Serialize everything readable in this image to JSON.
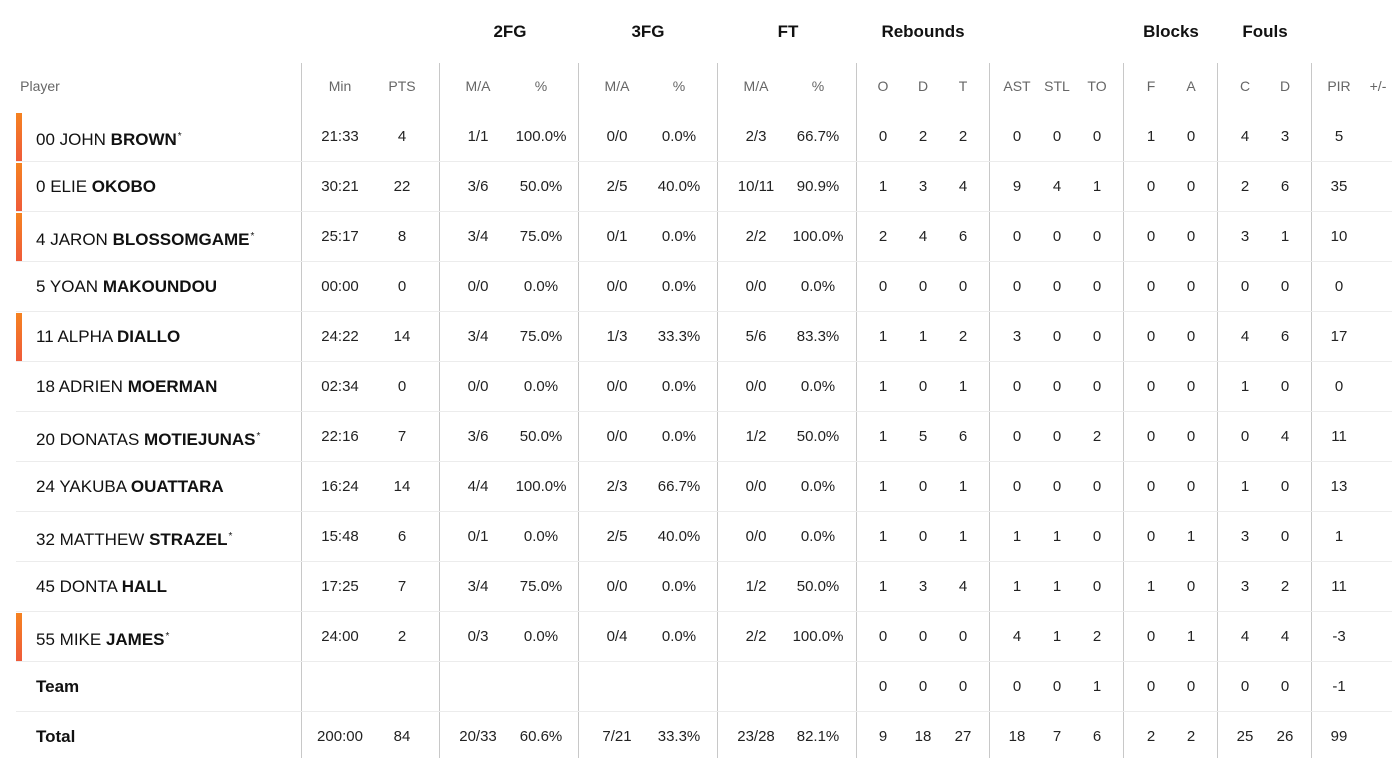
{
  "groups": {
    "fg2": "2FG",
    "fg3": "3FG",
    "ft": "FT",
    "rebounds": "Rebounds",
    "blocks": "Blocks",
    "fouls": "Fouls"
  },
  "columns": {
    "player": "Player",
    "min": "Min",
    "pts": "PTS",
    "fg2_ma": "M/A",
    "fg2_pct": "%",
    "fg3_ma": "M/A",
    "fg3_pct": "%",
    "ft_ma": "M/A",
    "ft_pct": "%",
    "reb_o": "O",
    "reb_d": "D",
    "reb_t": "T",
    "ast": "AST",
    "stl": "STL",
    "to": "TO",
    "blk_f": "F",
    "blk_a": "A",
    "foul_c": "C",
    "foul_d": "D",
    "pir": "PIR",
    "pm": "+/-"
  },
  "accent_color": "#f26f2c",
  "players": [
    {
      "number": "00",
      "first": "JOHN",
      "last": "BROWN",
      "starter": true,
      "on_court": true,
      "min": "21:33",
      "pts": "4",
      "fg2_ma": "1/1",
      "fg2_pct": "100.0%",
      "fg3_ma": "0/0",
      "fg3_pct": "0.0%",
      "ft_ma": "2/3",
      "ft_pct": "66.7%",
      "reb_o": "0",
      "reb_d": "2",
      "reb_t": "2",
      "ast": "0",
      "stl": "0",
      "to": "0",
      "blk_f": "1",
      "blk_a": "0",
      "foul_c": "4",
      "foul_d": "3",
      "pir": "5"
    },
    {
      "number": "0",
      "first": "ELIE",
      "last": "OKOBO",
      "starter": false,
      "on_court": true,
      "min": "30:21",
      "pts": "22",
      "fg2_ma": "3/6",
      "fg2_pct": "50.0%",
      "fg3_ma": "2/5",
      "fg3_pct": "40.0%",
      "ft_ma": "10/11",
      "ft_pct": "90.9%",
      "reb_o": "1",
      "reb_d": "3",
      "reb_t": "4",
      "ast": "9",
      "stl": "4",
      "to": "1",
      "blk_f": "0",
      "blk_a": "0",
      "foul_c": "2",
      "foul_d": "6",
      "pir": "35"
    },
    {
      "number": "4",
      "first": "JARON",
      "last": "BLOSSOMGAME",
      "starter": true,
      "on_court": true,
      "min": "25:17",
      "pts": "8",
      "fg2_ma": "3/4",
      "fg2_pct": "75.0%",
      "fg3_ma": "0/1",
      "fg3_pct": "0.0%",
      "ft_ma": "2/2",
      "ft_pct": "100.0%",
      "reb_o": "2",
      "reb_d": "4",
      "reb_t": "6",
      "ast": "0",
      "stl": "0",
      "to": "0",
      "blk_f": "0",
      "blk_a": "0",
      "foul_c": "3",
      "foul_d": "1",
      "pir": "10"
    },
    {
      "number": "5",
      "first": "YOAN",
      "last": "MAKOUNDOU",
      "starter": false,
      "on_court": false,
      "min": "00:00",
      "pts": "0",
      "fg2_ma": "0/0",
      "fg2_pct": "0.0%",
      "fg3_ma": "0/0",
      "fg3_pct": "0.0%",
      "ft_ma": "0/0",
      "ft_pct": "0.0%",
      "reb_o": "0",
      "reb_d": "0",
      "reb_t": "0",
      "ast": "0",
      "stl": "0",
      "to": "0",
      "blk_f": "0",
      "blk_a": "0",
      "foul_c": "0",
      "foul_d": "0",
      "pir": "0"
    },
    {
      "number": "11",
      "first": "ALPHA",
      "last": "DIALLO",
      "starter": false,
      "on_court": true,
      "min": "24:22",
      "pts": "14",
      "fg2_ma": "3/4",
      "fg2_pct": "75.0%",
      "fg3_ma": "1/3",
      "fg3_pct": "33.3%",
      "ft_ma": "5/6",
      "ft_pct": "83.3%",
      "reb_o": "1",
      "reb_d": "1",
      "reb_t": "2",
      "ast": "3",
      "stl": "0",
      "to": "0",
      "blk_f": "0",
      "blk_a": "0",
      "foul_c": "4",
      "foul_d": "6",
      "pir": "17"
    },
    {
      "number": "18",
      "first": "ADRIEN",
      "last": "MOERMAN",
      "starter": false,
      "on_court": false,
      "min": "02:34",
      "pts": "0",
      "fg2_ma": "0/0",
      "fg2_pct": "0.0%",
      "fg3_ma": "0/0",
      "fg3_pct": "0.0%",
      "ft_ma": "0/0",
      "ft_pct": "0.0%",
      "reb_o": "1",
      "reb_d": "0",
      "reb_t": "1",
      "ast": "0",
      "stl": "0",
      "to": "0",
      "blk_f": "0",
      "blk_a": "0",
      "foul_c": "1",
      "foul_d": "0",
      "pir": "0"
    },
    {
      "number": "20",
      "first": "DONATAS",
      "last": "MOTIEJUNAS",
      "starter": true,
      "on_court": false,
      "min": "22:16",
      "pts": "7",
      "fg2_ma": "3/6",
      "fg2_pct": "50.0%",
      "fg3_ma": "0/0",
      "fg3_pct": "0.0%",
      "ft_ma": "1/2",
      "ft_pct": "50.0%",
      "reb_o": "1",
      "reb_d": "5",
      "reb_t": "6",
      "ast": "0",
      "stl": "0",
      "to": "2",
      "blk_f": "0",
      "blk_a": "0",
      "foul_c": "0",
      "foul_d": "4",
      "pir": "11"
    },
    {
      "number": "24",
      "first": "YAKUBA",
      "last": "OUATTARA",
      "starter": false,
      "on_court": false,
      "min": "16:24",
      "pts": "14",
      "fg2_ma": "4/4",
      "fg2_pct": "100.0%",
      "fg3_ma": "2/3",
      "fg3_pct": "66.7%",
      "ft_ma": "0/0",
      "ft_pct": "0.0%",
      "reb_o": "1",
      "reb_d": "0",
      "reb_t": "1",
      "ast": "0",
      "stl": "0",
      "to": "0",
      "blk_f": "0",
      "blk_a": "0",
      "foul_c": "1",
      "foul_d": "0",
      "pir": "13"
    },
    {
      "number": "32",
      "first": "MATTHEW",
      "last": "STRAZEL",
      "starter": true,
      "on_court": false,
      "min": "15:48",
      "pts": "6",
      "fg2_ma": "0/1",
      "fg2_pct": "0.0%",
      "fg3_ma": "2/5",
      "fg3_pct": "40.0%",
      "ft_ma": "0/0",
      "ft_pct": "0.0%",
      "reb_o": "1",
      "reb_d": "0",
      "reb_t": "1",
      "ast": "1",
      "stl": "1",
      "to": "0",
      "blk_f": "0",
      "blk_a": "1",
      "foul_c": "3",
      "foul_d": "0",
      "pir": "1"
    },
    {
      "number": "45",
      "first": "DONTA",
      "last": "HALL",
      "starter": false,
      "on_court": false,
      "min": "17:25",
      "pts": "7",
      "fg2_ma": "3/4",
      "fg2_pct": "75.0%",
      "fg3_ma": "0/0",
      "fg3_pct": "0.0%",
      "ft_ma": "1/2",
      "ft_pct": "50.0%",
      "reb_o": "1",
      "reb_d": "3",
      "reb_t": "4",
      "ast": "1",
      "stl": "1",
      "to": "0",
      "blk_f": "1",
      "blk_a": "0",
      "foul_c": "3",
      "foul_d": "2",
      "pir": "11"
    },
    {
      "number": "55",
      "first": "MIKE",
      "last": "JAMES",
      "starter": true,
      "on_court": true,
      "min": "24:00",
      "pts": "2",
      "fg2_ma": "0/3",
      "fg2_pct": "0.0%",
      "fg3_ma": "0/4",
      "fg3_pct": "0.0%",
      "ft_ma": "2/2",
      "ft_pct": "100.0%",
      "reb_o": "0",
      "reb_d": "0",
      "reb_t": "0",
      "ast": "4",
      "stl": "1",
      "to": "2",
      "blk_f": "0",
      "blk_a": "1",
      "foul_c": "4",
      "foul_d": "4",
      "pir": "-3"
    }
  ],
  "team": {
    "label": "Team",
    "reb_o": "0",
    "reb_d": "0",
    "reb_t": "0",
    "ast": "0",
    "stl": "0",
    "to": "1",
    "blk_f": "0",
    "blk_a": "0",
    "foul_c": "0",
    "foul_d": "0",
    "pir": "-1"
  },
  "total": {
    "label": "Total",
    "min": "200:00",
    "pts": "84",
    "fg2_ma": "20/33",
    "fg2_pct": "60.6%",
    "fg3_ma": "7/21",
    "fg3_pct": "33.3%",
    "ft_ma": "23/28",
    "ft_pct": "82.1%",
    "reb_o": "9",
    "reb_d": "18",
    "reb_t": "27",
    "ast": "18",
    "stl": "7",
    "to": "6",
    "blk_f": "2",
    "blk_a": "2",
    "foul_c": "25",
    "foul_d": "26",
    "pir": "99"
  }
}
